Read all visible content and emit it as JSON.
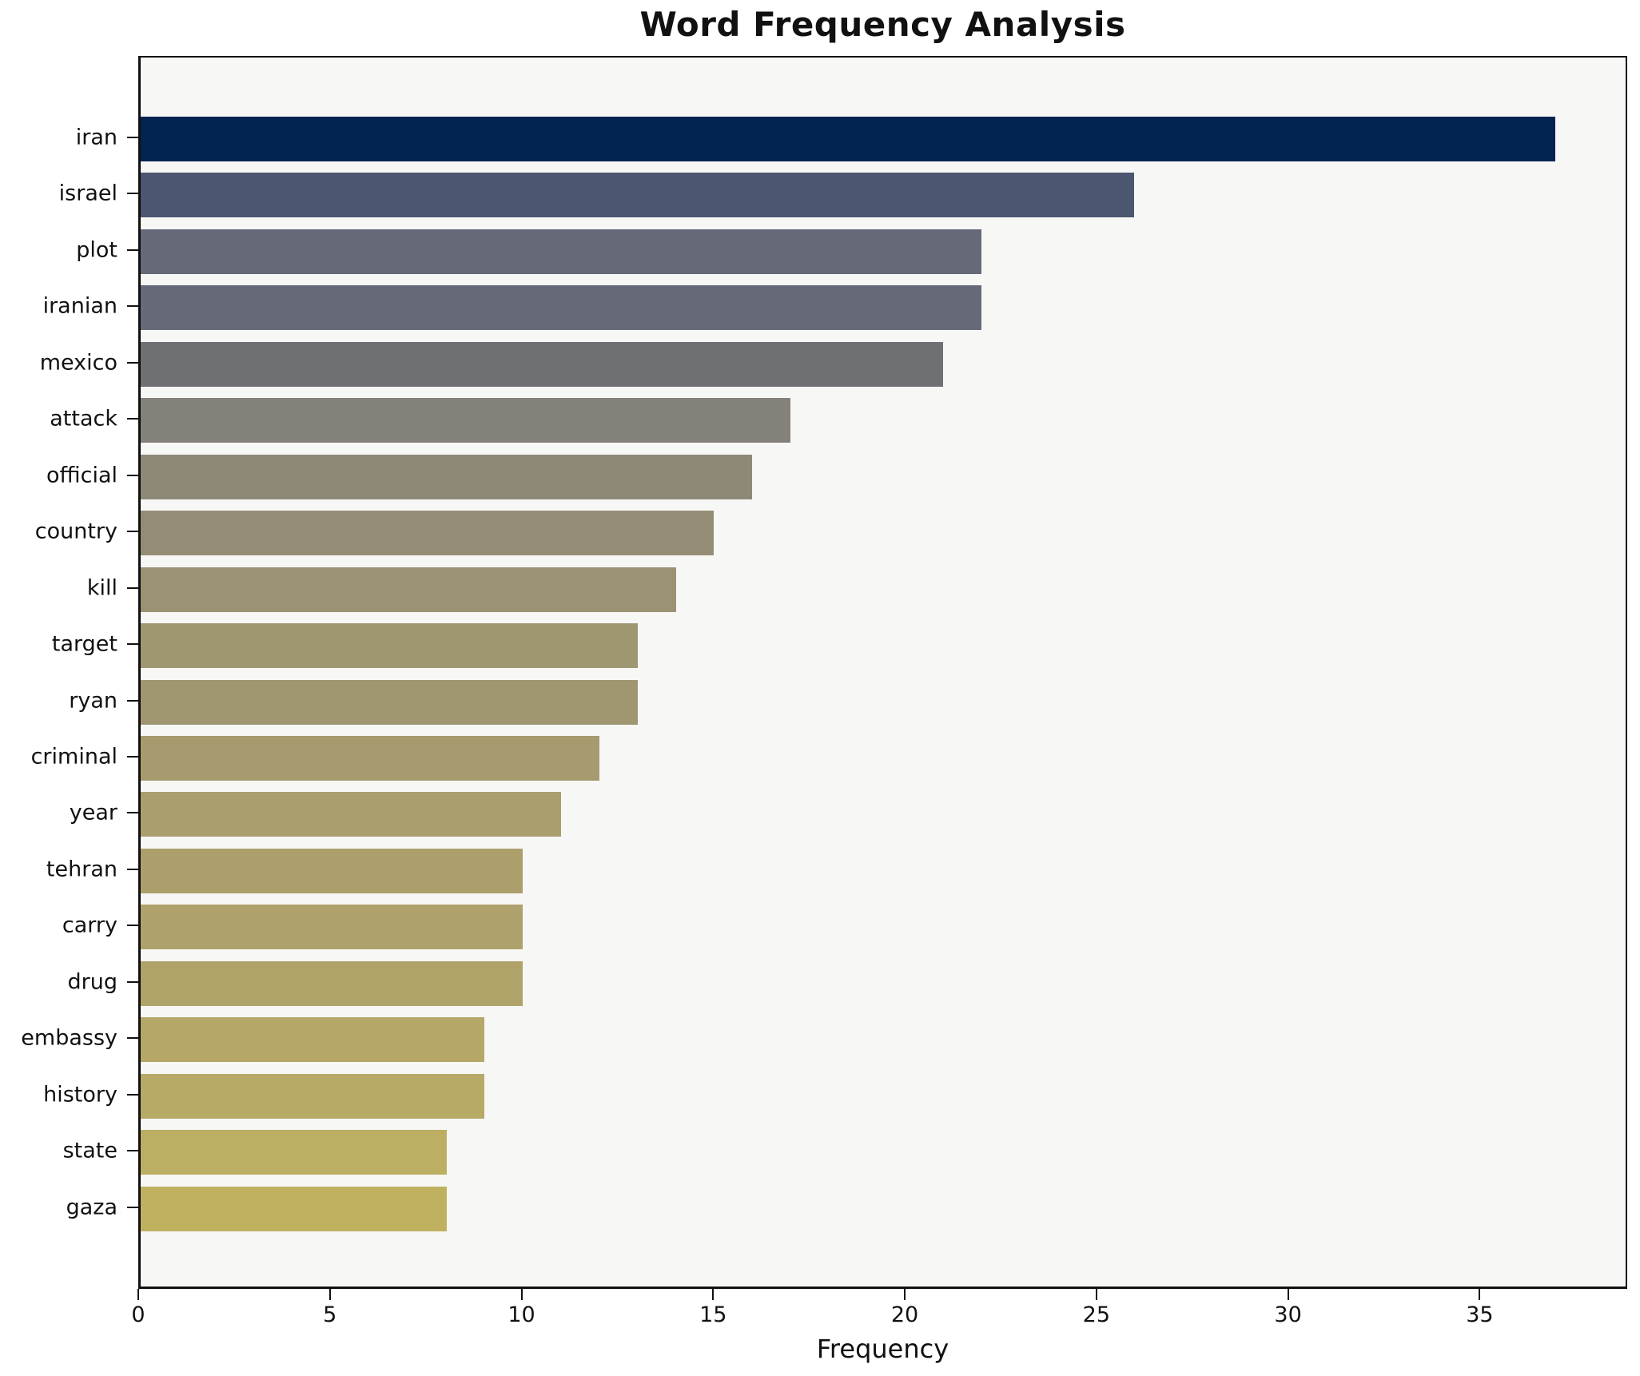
{
  "chart_data": {
    "type": "bar",
    "orientation": "horizontal",
    "title": "Word Frequency Analysis",
    "xlabel": "Frequency",
    "ylabel": "",
    "categories": [
      "iran",
      "israel",
      "plot",
      "iranian",
      "mexico",
      "attack",
      "official",
      "country",
      "kill",
      "target",
      "ryan",
      "criminal",
      "year",
      "tehran",
      "carry",
      "drug",
      "embassy",
      "history",
      "state",
      "gaza"
    ],
    "values": [
      37,
      26,
      22,
      22,
      21,
      17,
      16,
      15,
      14,
      13,
      13,
      12,
      11,
      10,
      10,
      10,
      9,
      9,
      8,
      8
    ],
    "bar_colors": [
      "#032350",
      "#4c5670",
      "#666a78",
      "#666a78",
      "#6e7074",
      "#84817a",
      "#8e8878",
      "#948d75",
      "#9a9273",
      "#9f9672",
      "#a09771",
      "#a59b6f",
      "#a99e6d",
      "#ac9f6c",
      "#aea16b",
      "#b0a36a",
      "#b5a767",
      "#b7a966",
      "#bcae62",
      "#c0b161"
    ],
    "xticks": [
      0,
      5,
      10,
      15,
      20,
      25,
      30,
      35
    ],
    "xlim": [
      0,
      38.85
    ],
    "grid": false,
    "legend": null,
    "plot_bg": "#f7f7f6",
    "figure_bg": "#ffffff",
    "spine_color": "#111111",
    "text_color": "#111111"
  }
}
